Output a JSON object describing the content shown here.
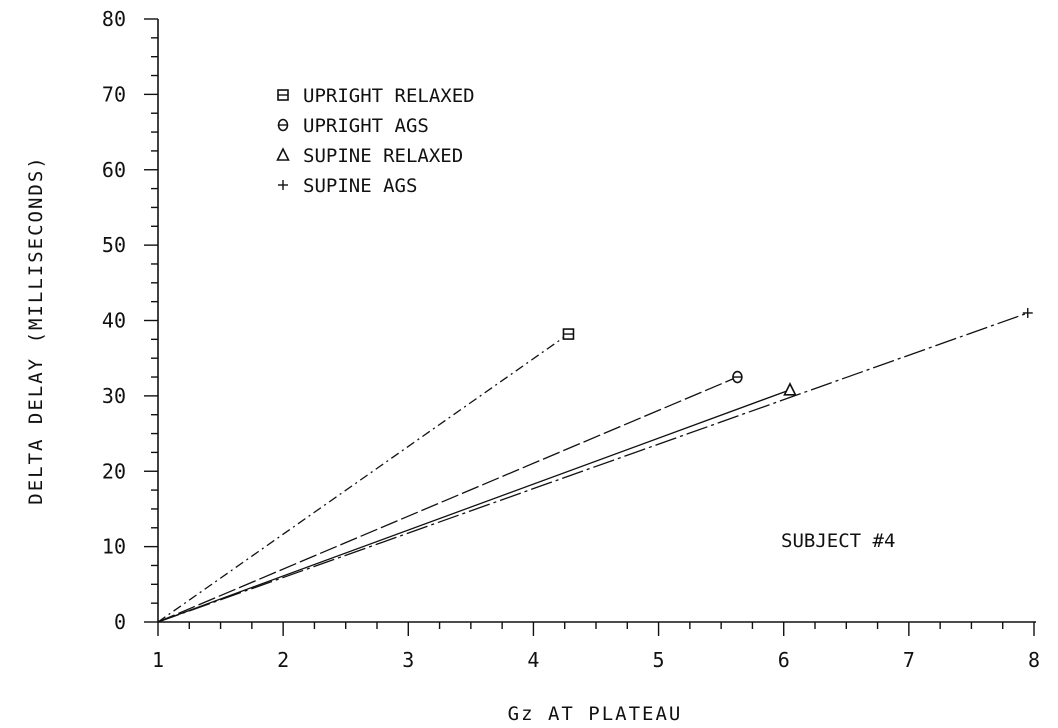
{
  "chart_data": {
    "type": "line",
    "xlabel": "Gz AT PLATEAU",
    "ylabel": "DELTA DELAY  (MILLISECONDS)",
    "xlim": [
      1,
      8
    ],
    "ylim": [
      0,
      80
    ],
    "x_ticks": [
      1,
      2,
      3,
      4,
      5,
      6,
      7,
      8
    ],
    "y_ticks": [
      0,
      10,
      20,
      30,
      40,
      50,
      60,
      70,
      80
    ],
    "legend_position": "top-left",
    "annotation": "SUBJECT #4",
    "series": [
      {
        "name": "UPRIGHT RELAXED",
        "marker": "square",
        "dash": "dash-dot",
        "points": [
          [
            1,
            0
          ],
          [
            4.28,
            38.2
          ]
        ]
      },
      {
        "name": "UPRIGHT AGS",
        "marker": "circle",
        "dash": "long-dash",
        "points": [
          [
            1,
            0
          ],
          [
            5.63,
            32.5
          ]
        ]
      },
      {
        "name": "SUPINE RELAXED",
        "marker": "triangle",
        "dash": "solid",
        "points": [
          [
            1,
            0
          ],
          [
            6.05,
            30.8
          ]
        ]
      },
      {
        "name": "SUPINE AGS",
        "marker": "plus",
        "dash": "dash-dot-long",
        "points": [
          [
            1,
            0
          ],
          [
            7.95,
            41.0
          ]
        ]
      }
    ]
  }
}
